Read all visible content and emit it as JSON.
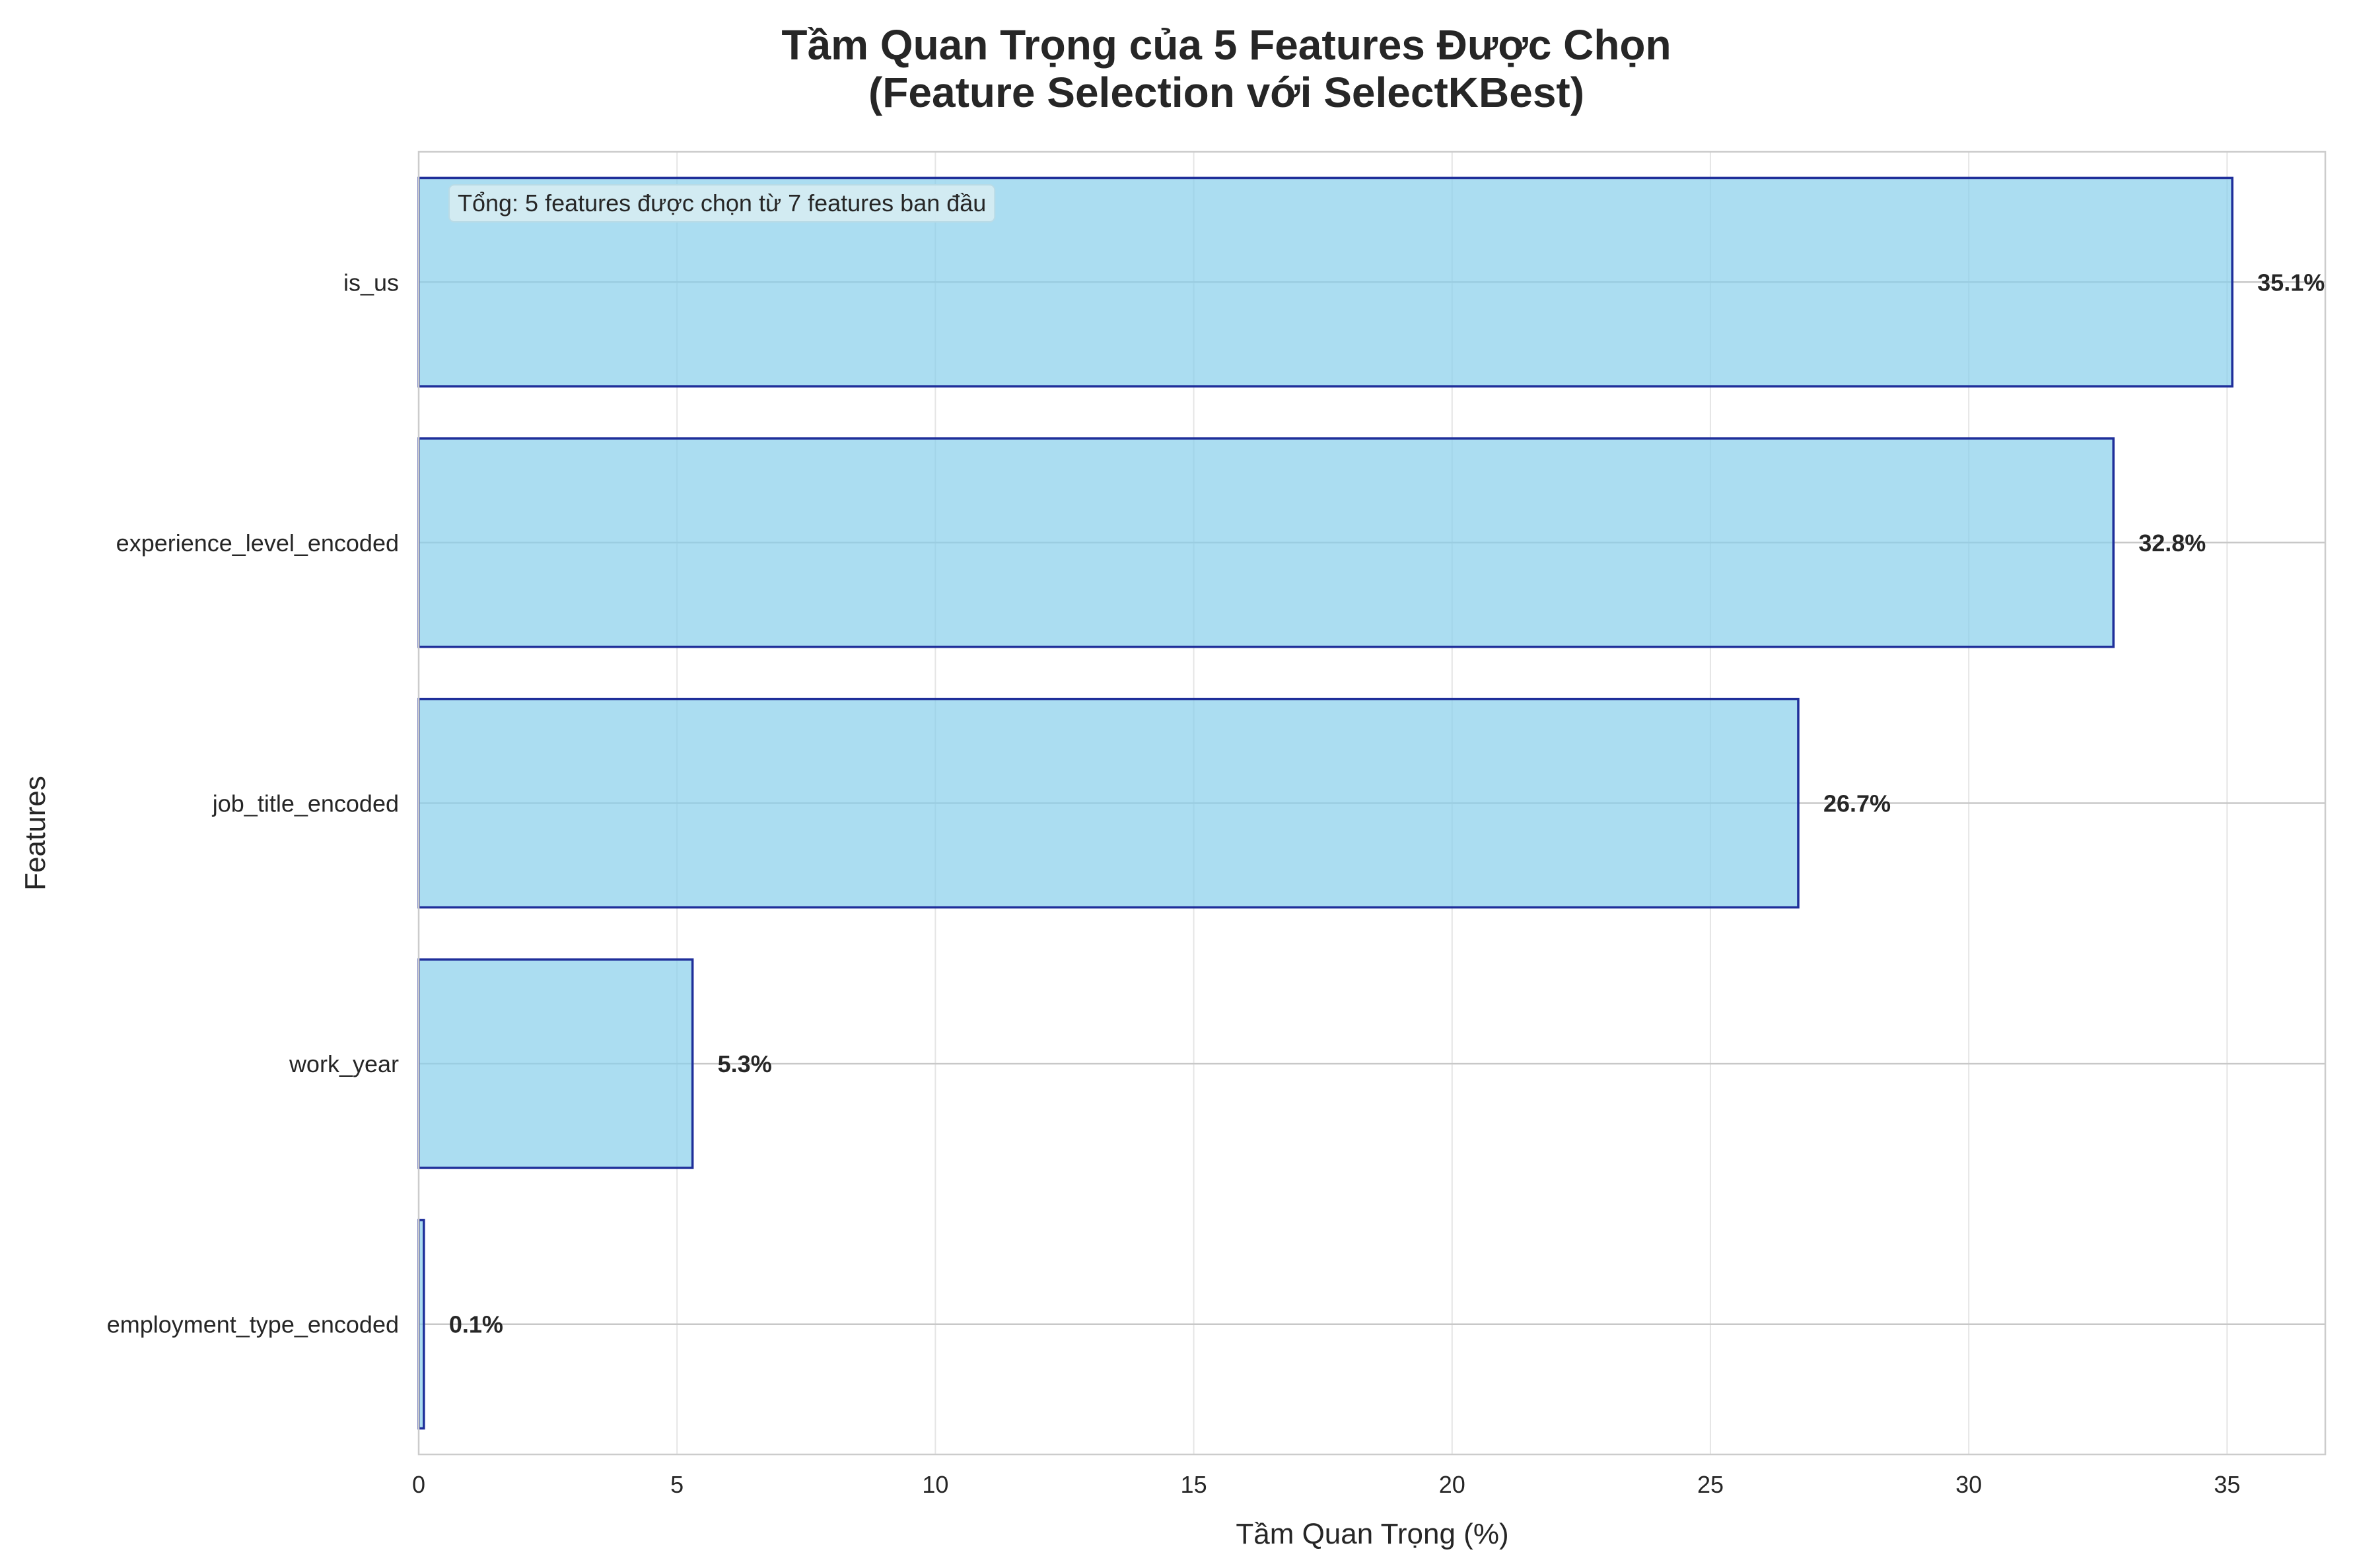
{
  "chart_data": {
    "type": "bar",
    "orientation": "horizontal",
    "title": "Tầm Quan Trọng của 5 Features Được Chọn",
    "subtitle": "(Feature Selection với SelectKBest)",
    "xlabel": "Tầm Quan Trọng (%)",
    "ylabel": "Features",
    "categories": [
      "is_us",
      "experience_level_encoded",
      "job_title_encoded",
      "work_year",
      "employment_type_encoded"
    ],
    "values": [
      35.1,
      32.8,
      26.7,
      5.3,
      0.1
    ],
    "value_labels": [
      "35.1%",
      "32.8%",
      "26.7%",
      "5.3%",
      "0.1%"
    ],
    "xlim": [
      0,
      36.9
    ],
    "xticks": [
      0,
      5,
      10,
      15,
      20,
      25,
      30,
      35
    ],
    "xtick_labels": [
      "0",
      "5",
      "10",
      "15",
      "20",
      "25",
      "30",
      "35"
    ],
    "grid": true,
    "annotation": "Tổng: 5 features được chọn từ 7 features ban đầu",
    "colors": {
      "bar_fill": "#87CEEB",
      "bar_edge": "#1f2f9a",
      "grid": "#e5e5e5",
      "frame": "#cccccc",
      "annotation_bg": "#d6ecf2"
    }
  }
}
